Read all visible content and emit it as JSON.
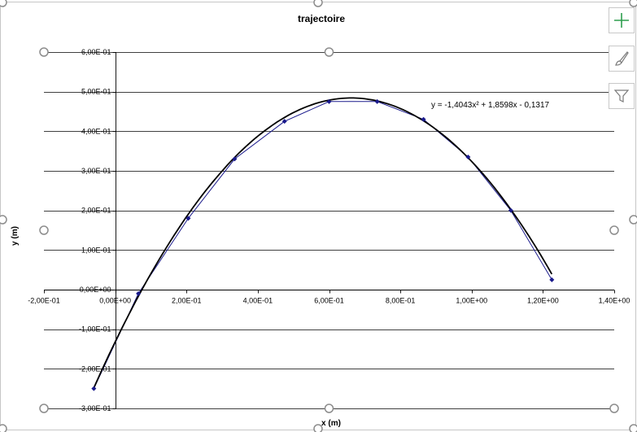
{
  "chart_data": {
    "type": "scatter",
    "title": "trajectoire",
    "xlabel": "x (m)",
    "ylabel": "y (m)",
    "xlim": [
      -0.2,
      1.4
    ],
    "ylim": [
      -0.3,
      0.6
    ],
    "x_ticks": [
      -0.2,
      0,
      0.2,
      0.4,
      0.6,
      0.8,
      1.0,
      1.2,
      1.4
    ],
    "x_tick_labels": [
      "-2,00E-01",
      "0,00E+00",
      "2,00E-01",
      "4,00E-01",
      "6,00E-01",
      "8,00E-01",
      "1,00E+00",
      "1,20E+00",
      "1,40E+00"
    ],
    "y_ticks": [
      0.6,
      0.5,
      0.4,
      0.3,
      0.2,
      0.1,
      0,
      -0.1,
      -0.2,
      -0.3
    ],
    "y_tick_labels": [
      "6,00E-01",
      "5,00E-01",
      "4,00E-01",
      "3,00E-01",
      "2,00E-01",
      "1,00E-01",
      "0,00E+00",
      "-1,00E-01",
      "-2,00E-01",
      "-3,00E-01"
    ],
    "grid": "horizontal",
    "series": [
      {
        "x": [
          -0.06,
          0.065,
          0.205,
          0.335,
          0.475,
          0.6,
          0.735,
          0.865,
          0.99,
          1.11,
          1.225
        ],
        "y": [
          -0.25,
          -0.01,
          0.18,
          0.33,
          0.425,
          0.475,
          0.475,
          0.43,
          0.335,
          0.2,
          0.025
        ],
        "color": "#1a1a8c"
      }
    ],
    "trendline": {
      "type": "polynomial",
      "coefficients": [
        -1.4043,
        1.8598,
        -0.1317
      ],
      "equation_label": "y = -1,4043x² + 1,8598x - 0,1317",
      "color": "#000000"
    }
  },
  "toolbar": {
    "buttons": [
      {
        "name": "chart-elements-button",
        "icon": "plus-icon",
        "color": "#2e9e4f"
      },
      {
        "name": "chart-styles-button",
        "icon": "brush-icon",
        "color": "#7a7a7a"
      },
      {
        "name": "chart-filters-button",
        "icon": "filter-icon",
        "color": "#7a7a7a"
      }
    ]
  }
}
